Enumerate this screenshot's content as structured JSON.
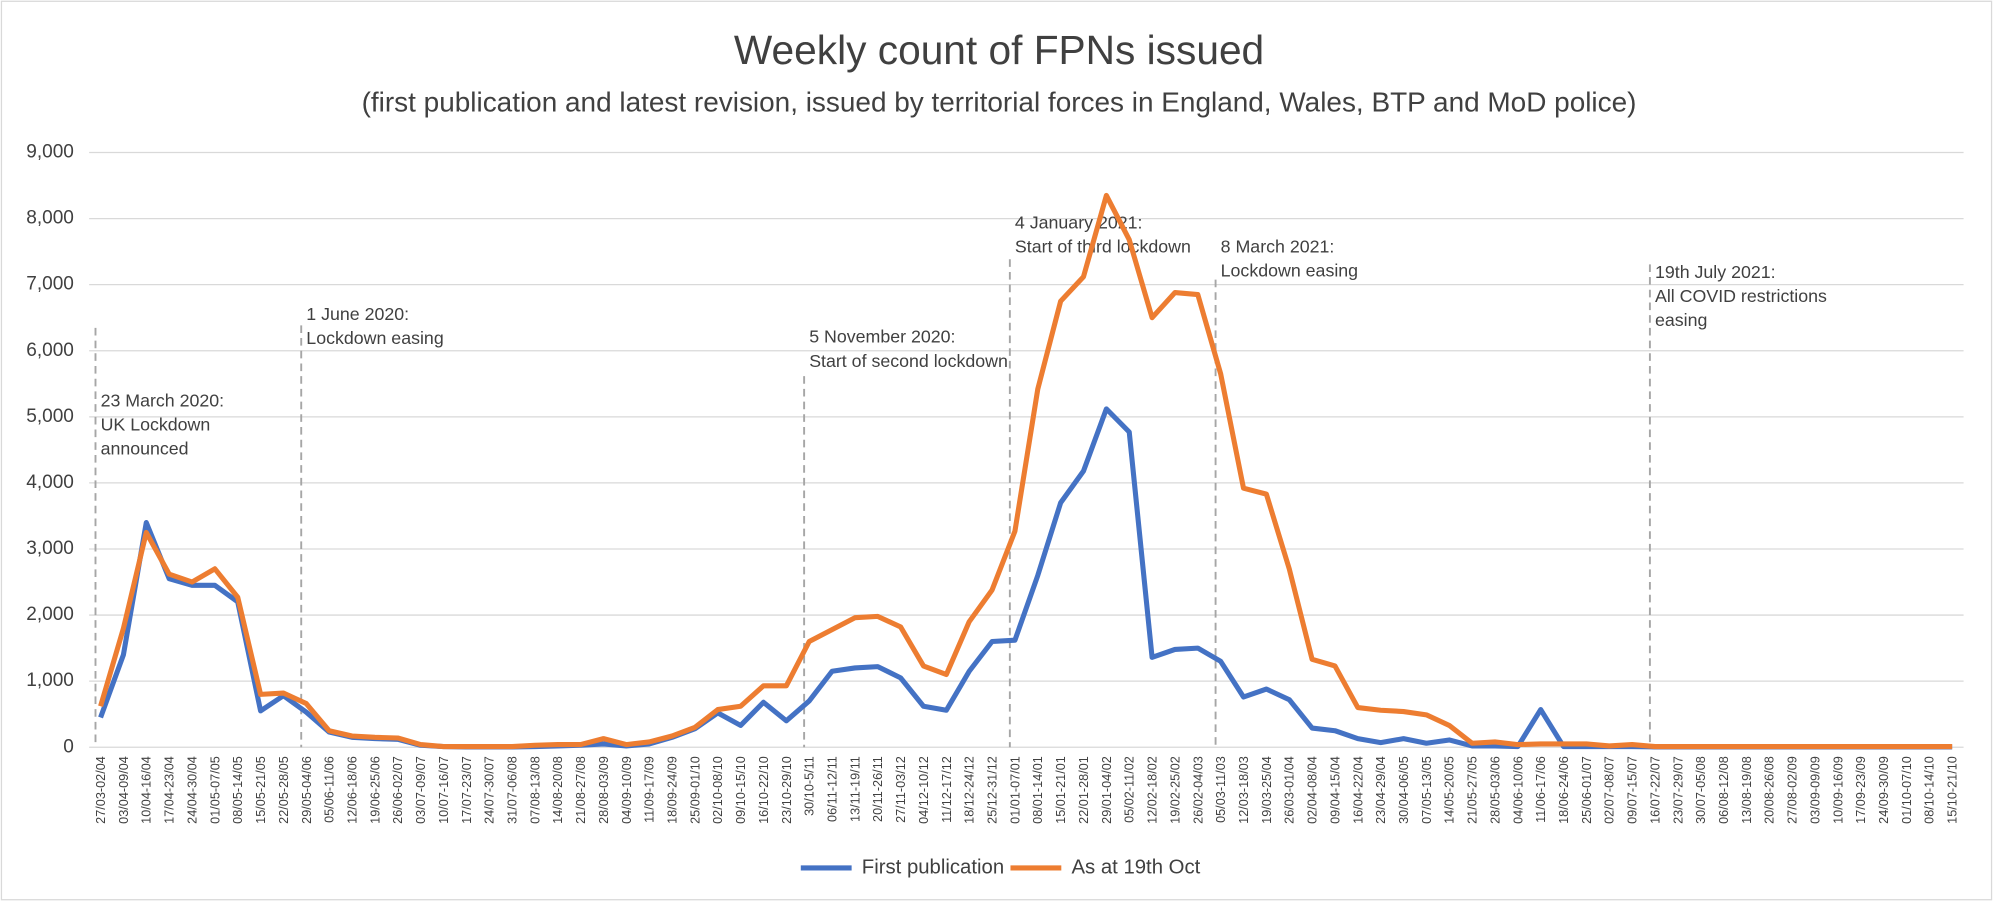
{
  "chart_data": {
    "type": "line",
    "title": "Weekly count of FPNs issued",
    "subtitle": "(first publication and latest revision, issued by territorial forces in England, Wales, BTP and MoD police)",
    "categories": [
      "27/03-02/04",
      "03/04-09/04",
      "10/04-16/04",
      "17/04-23/04",
      "24/04-30/04",
      "01/05-07/05",
      "08/05-14/05",
      "15/05-21/05",
      "22/05-28/05",
      "29/05-04/06",
      "05/06-11/06",
      "12/06-18/06",
      "19/06-25/06",
      "26/06-02/07",
      "03/07-09/07",
      "10/07-16/07",
      "17/07-23/07",
      "24/07-30/07",
      "31/07-06/08",
      "07/08-13/08",
      "14/08-20/08",
      "21/08-27/08",
      "28/08-03/09",
      "04/09-10/09",
      "11/09-17/09",
      "18/09-24/09",
      "25/09-01/10",
      "02/10-08/10",
      "09/10-15/10",
      "16/10-22/10",
      "23/10-29/10",
      "30/10-5/11",
      "06/11-12/11",
      "13/11-19/11",
      "20/11-26/11",
      "27/11-03/12",
      "04/12-10/12",
      "11/12-17/12",
      "18/12-24/12",
      "25/12-31/12",
      "01/01-07/01",
      "08/01-14/01",
      "15/01-21/01",
      "22/01-28/01",
      "29/01-04/02",
      "05/02-11/02",
      "12/02-18/02",
      "19/02-25/02",
      "26/02-04/03",
      "05/03-11/03",
      "12/03-18/03",
      "19/03-25/04",
      "26/03-01/04",
      "02/04-08/04",
      "09/04-15/04",
      "16/04-22/04",
      "23/04-29/04",
      "30/04-06/05",
      "07/05-13/05",
      "14/05-20/05",
      "21/05-27/05",
      "28/05-03/06",
      "04/06-10/06",
      "11/06-17/06",
      "18/06-24/06",
      "25/06-01/07",
      "02/07-08/07",
      "09/07-15/07",
      "16/07-22/07",
      "23/07-29/07",
      "30/07-05/08",
      "06/08-12/08",
      "13/08-19/08",
      "20/08-26/08",
      "27/08-02/09",
      "03/09-09/09",
      "10/09-16/09",
      "17/09-23/09",
      "24/09-30/09",
      "01/10-07/10",
      "08/10-14/10",
      "15/10-21/10"
    ],
    "series": [
      {
        "name": "First publication",
        "color": "#4472c4",
        "values": [
          450,
          1400,
          3400,
          2550,
          2450,
          2450,
          2200,
          550,
          780,
          530,
          230,
          150,
          130,
          120,
          30,
          10,
          5,
          5,
          5,
          10,
          20,
          30,
          50,
          20,
          50,
          150,
          280,
          520,
          330,
          680,
          400,
          700,
          1150,
          1200,
          1220,
          1050,
          620,
          560,
          1150,
          1600,
          1620,
          2600,
          3700,
          4180,
          5120,
          4770,
          1360,
          1480,
          1500,
          1300,
          760,
          880,
          720,
          290,
          250,
          130,
          70,
          130,
          60,
          110,
          20,
          20,
          10,
          570,
          10,
          10,
          10,
          10,
          5,
          5,
          5,
          5,
          5,
          5,
          5,
          5,
          5,
          5,
          5,
          5,
          5,
          5
        ]
      },
      {
        "name": "As at 19th Oct",
        "color": "#ed7d31",
        "values": [
          620,
          1800,
          3250,
          2620,
          2500,
          2700,
          2270,
          800,
          820,
          660,
          250,
          170,
          150,
          140,
          40,
          10,
          10,
          10,
          10,
          30,
          40,
          40,
          130,
          40,
          80,
          170,
          300,
          570,
          620,
          930,
          930,
          1600,
          1780,
          1960,
          1980,
          1820,
          1230,
          1100,
          1900,
          2380,
          3270,
          5420,
          6750,
          7120,
          8350,
          7680,
          6500,
          6880,
          6850,
          5650,
          3920,
          3830,
          2700,
          1330,
          1230,
          600,
          560,
          540,
          490,
          330,
          60,
          80,
          40,
          50,
          50,
          50,
          20,
          40,
          10,
          10,
          10,
          10,
          10,
          10,
          10,
          10,
          10,
          10,
          10,
          10,
          10,
          10
        ]
      }
    ],
    "ylim": [
      0,
      9000
    ],
    "yticks": [
      0,
      {
        "value": 1000,
        "label": "1,000"
      },
      {
        "value": 2000,
        "label": "2,000"
      },
      {
        "value": 3000,
        "label": "3,000"
      },
      {
        "value": 4000,
        "label": "4,000"
      },
      {
        "value": 5000,
        "label": "5,000"
      },
      {
        "value": 6000,
        "label": "6,000"
      },
      {
        "value": 7000,
        "label": "7,000"
      },
      {
        "value": 8000,
        "label": "8,000"
      },
      {
        "value": 9000,
        "label": "9,000"
      }
    ],
    "grid": true,
    "legend": "bottom",
    "annotations": [
      {
        "category": "27/03-02/04",
        "lines": [
          "23 March 2020:",
          "UK Lockdown",
          "announced"
        ]
      },
      {
        "category": "29/05-04/06",
        "lines": [
          "1 June 2020:",
          "Lockdown easing"
        ]
      },
      {
        "category": "30/10-5/11",
        "lines": [
          "5 November 2020:",
          "Start of second lockdown"
        ]
      },
      {
        "category": "01/01-07/01",
        "lines": [
          "4 January 2021:",
          "Start of third lockdown"
        ]
      },
      {
        "category": "05/03-11/03",
        "lines": [
          "8 March 2021:",
          "Lockdown easing"
        ]
      },
      {
        "category": "16/07-22/07",
        "lines": [
          "19th July 2021:",
          "All COVID restrictions",
          "easing"
        ]
      }
    ]
  }
}
